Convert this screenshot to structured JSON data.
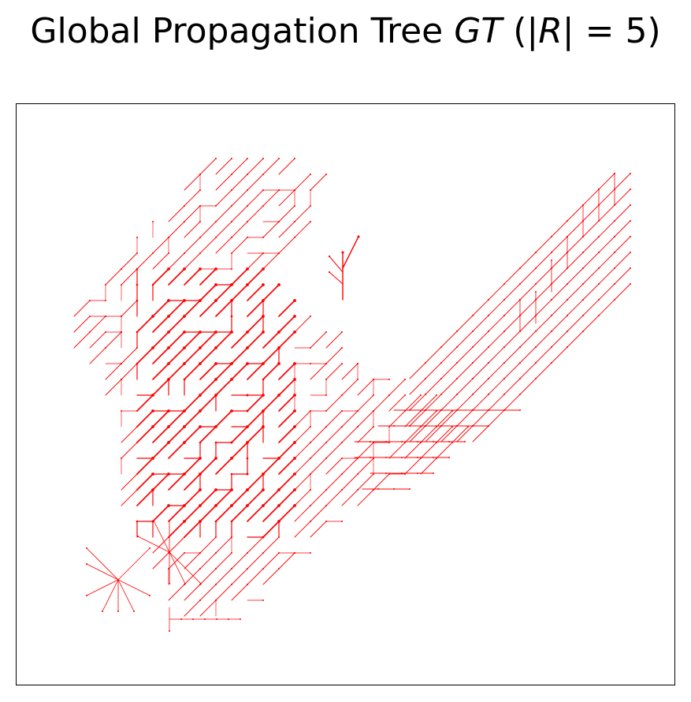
{
  "title": {
    "text_before": "Global Propagation Tree ",
    "text_italic_1": "GT",
    "text_mid_1": " (|",
    "text_italic_2": "R",
    "text_after": "| =  5)"
  },
  "diagram": {
    "kind": "propagation-tree",
    "edge_color": "#ff0000",
    "frame_color": "#000000",
    "root_count": 5
  }
}
